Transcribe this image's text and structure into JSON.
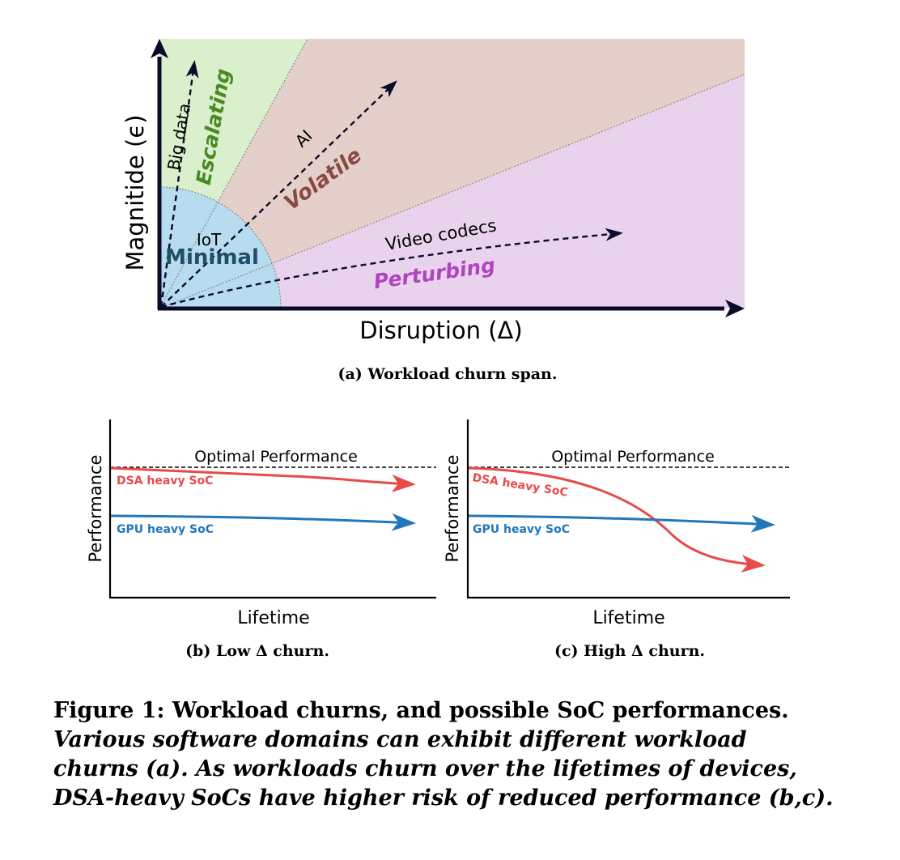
{
  "panel_a": {
    "x_label": "Disruption (Δ)",
    "y_label": "Magnitide (ϵ)",
    "regions": {
      "minimal": "Minimal",
      "escalating": "Escalating",
      "volatile": "Volatile",
      "perturbing": "Perturbing"
    },
    "arrows": {
      "big_data": "Big data",
      "ai": "AI",
      "iot": "IoT",
      "video": "Video codecs"
    },
    "caption": "(a) Workload churn span.",
    "colors": {
      "minimal": "#b7dcef",
      "escalating": "#daf0cc",
      "volatile": "#e5cfca",
      "perturbing": "#e9d3ec",
      "minimal_text": "#1f4e66",
      "escalating_text": "#4a8a22",
      "volatile_text": "#8a4a44",
      "perturbing_text": "#b044c0"
    }
  },
  "panel_b": {
    "title_line": "Optimal Performance",
    "y_label": "Performance",
    "x_label": "Lifetime",
    "dsa_label": "DSA heavy SoC",
    "gpu_label": "GPU heavy SoC",
    "caption": "(b) Low Δ churn."
  },
  "panel_c": {
    "title_line": "Optimal Performance",
    "y_label": "Performance",
    "x_label": "Lifetime",
    "dsa_label": "DSA heavy SoC",
    "gpu_label": "GPU heavy SoC",
    "caption": "(c) High Δ churn."
  },
  "colors": {
    "dsa": "#e84a4a",
    "gpu": "#2277bb"
  },
  "figure_caption": {
    "title": "Figure 1: Workload churns, and possible SoC performances.",
    "lines": [
      "Various software domains can exhibit different workload",
      "churns (a). As workloads churn over the lifetimes of devices,",
      "DSA-heavy SoCs have higher risk of reduced performance (b,c)."
    ]
  }
}
